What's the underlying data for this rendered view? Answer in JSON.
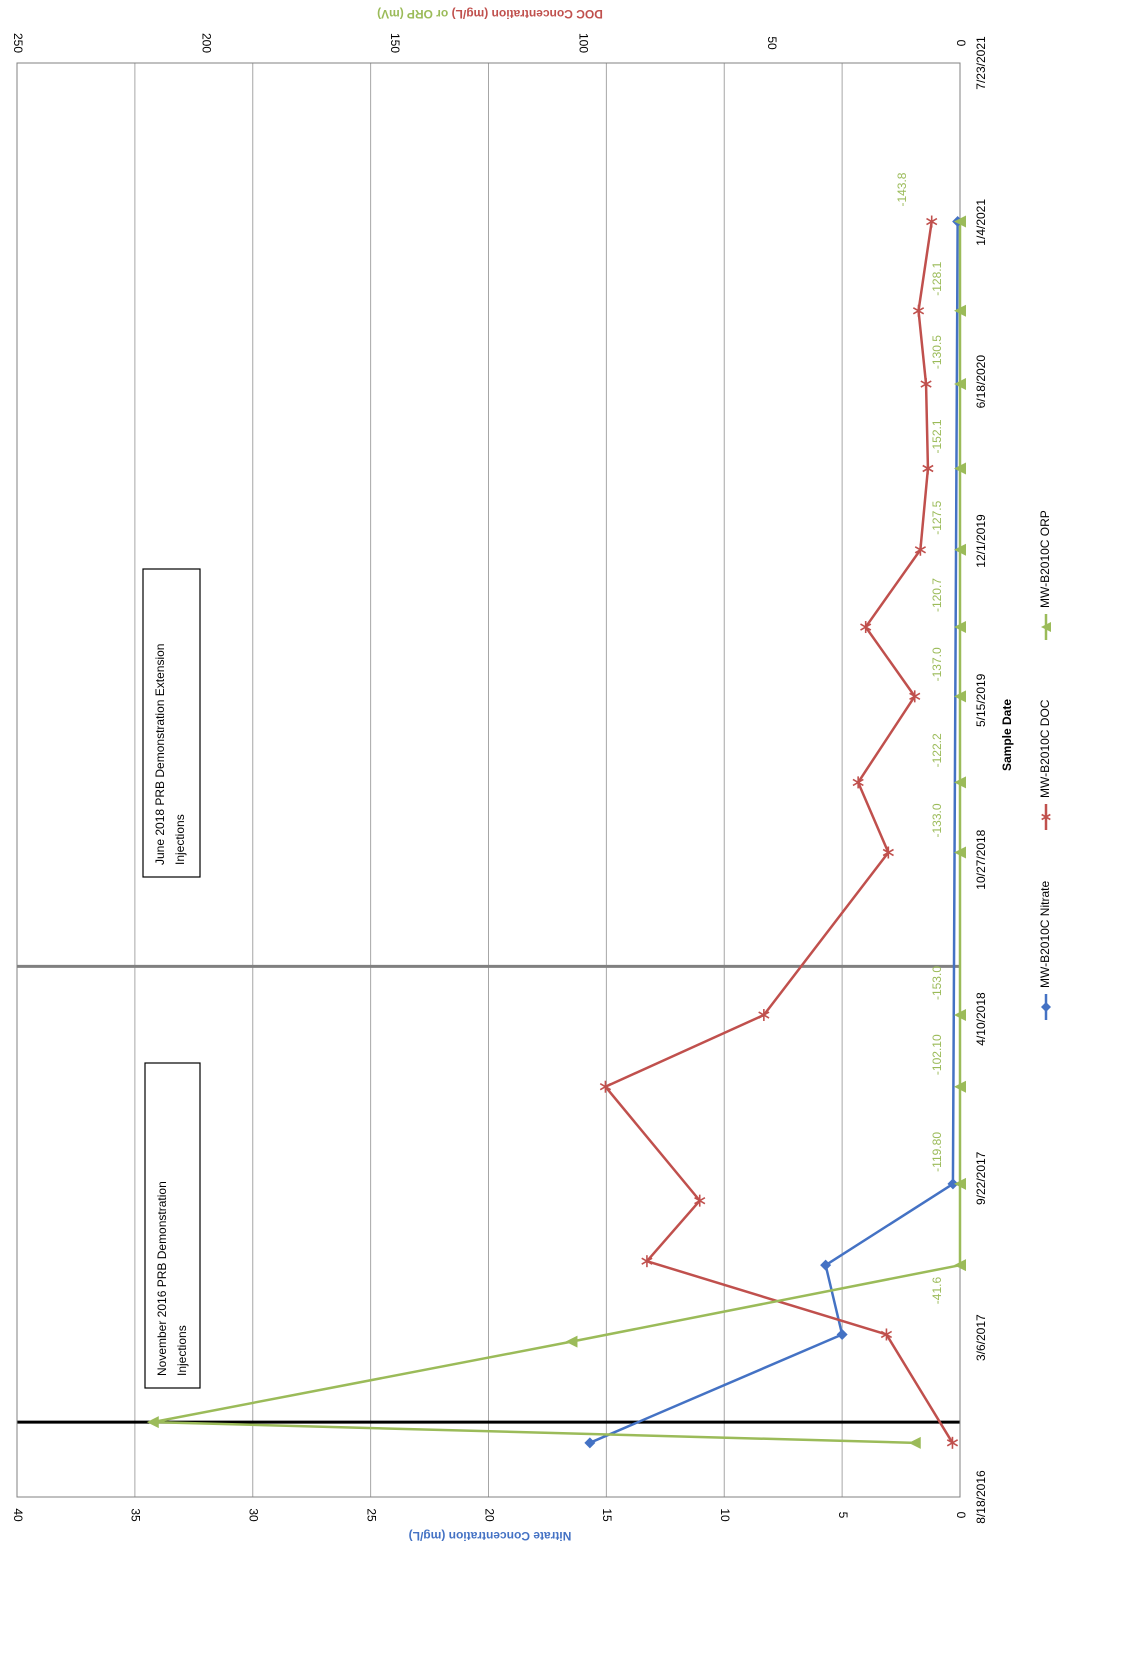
{
  "chart_data": {
    "type": "line",
    "xlabel": "Sample Date",
    "y_left_label": "Nitrate Concentration (mg/L)",
    "y_right_label": "DOC Concentration (mg/L) or ORP (mV)",
    "x_ticks": [
      "8/18/2016",
      "3/6/2017",
      "9/22/2017",
      "4/10/2018",
      "10/27/2018",
      "5/15/2019",
      "12/1/2019",
      "6/18/2020",
      "1/4/2021",
      "7/23/2021"
    ],
    "x_range": [
      "8/18/2016",
      "7/23/2021"
    ],
    "y_left_range": [
      0,
      40
    ],
    "y_left_ticks": [
      0,
      5,
      10,
      15,
      20,
      25,
      30,
      35,
      40
    ],
    "y_right_range": [
      0,
      250
    ],
    "y_right_ticks": [
      0,
      50,
      100,
      150,
      200,
      250
    ],
    "grid": true,
    "legend_position": "bottom",
    "colors": {
      "nitrate": "#4472c4",
      "doc": "#c0504d",
      "orp": "#9bbb59",
      "right_axis_doc": "#c0504d",
      "right_axis_orp": "#9bbb59",
      "left_axis": "#4472c4"
    },
    "series": [
      {
        "name": "MW-B2010C Nitrate",
        "axis": "left",
        "marker": "diamond",
        "x": [
          "10/25/2016",
          "3/10/2017",
          "6/5/2017",
          "9/15/2017",
          "1/5/2021"
        ],
        "y": [
          15.7,
          5.0,
          5.7,
          0.3,
          0.1
        ]
      },
      {
        "name": "MW-B2010C DOC",
        "axis": "right",
        "marker": "star",
        "x": [
          "10/25/2016",
          "3/10/2017",
          "6/10/2017",
          "8/25/2017",
          "1/15/2018",
          "4/15/2018",
          "11/5/2018",
          "2/1/2019",
          "5/20/2019",
          "8/15/2019",
          "11/20/2019",
          "3/1/2020",
          "6/15/2020",
          "9/15/2020",
          "1/5/2021"
        ],
        "y": [
          2.0,
          19.5,
          83.0,
          69.0,
          94.0,
          52.0,
          19.0,
          27.0,
          12.0,
          25.0,
          10.5,
          8.5,
          9.0,
          11.0,
          7.5
        ]
      },
      {
        "name": "MW-B2010C ORP",
        "axis": "right",
        "marker": "triangle",
        "x": [
          "10/25/2016",
          "11/20/2016",
          "3/1/2017",
          "6/5/2017",
          "9/15/2017",
          "1/15/2018",
          "4/15/2018",
          "11/5/2018",
          "2/1/2019",
          "5/20/2019",
          "8/15/2019",
          "11/20/2019",
          "3/1/2020",
          "6/15/2020",
          "9/15/2020",
          "1/5/2021"
        ],
        "y": [
          12,
          214,
          103,
          0,
          0,
          0,
          0,
          0,
          0,
          0,
          0,
          0,
          0,
          0,
          0,
          0
        ]
      }
    ],
    "data_labels": [
      {
        "series": "MW-B2010C ORP",
        "x": "3/25/2017",
        "text": "-41.6"
      },
      {
        "series": "MW-B2010C ORP",
        "x": "9/15/2017",
        "text": "-119.80"
      },
      {
        "series": "MW-B2010C ORP",
        "x": "1/15/2018",
        "text": "-102.10"
      },
      {
        "series": "MW-B2010C ORP",
        "x": "4/15/2018",
        "text": "-153.0"
      },
      {
        "series": "MW-B2010C ORP",
        "x": "11/5/2018",
        "text": "-133.0"
      },
      {
        "series": "MW-B2010C ORP",
        "x": "2/1/2019",
        "text": "-122.2"
      },
      {
        "series": "MW-B2010C ORP",
        "x": "5/20/2019",
        "text": "-137.0"
      },
      {
        "series": "MW-B2010C ORP",
        "x": "8/15/2019",
        "text": "-120.7"
      },
      {
        "series": "MW-B2010C ORP",
        "x": "11/20/2019",
        "text": "-127.5"
      },
      {
        "series": "MW-B2010C ORP",
        "x": "3/1/2020",
        "text": "-152.1"
      },
      {
        "series": "MW-B2010C ORP",
        "x": "6/15/2020",
        "text": "-130.5"
      },
      {
        "series": "MW-B2010C ORP",
        "x": "9/15/2020",
        "text": "-128.1"
      },
      {
        "series": "MW-B2010C ORP",
        "x": "1/5/2021",
        "text": "-143.8"
      }
    ],
    "events": [
      {
        "x": "11/20/2016",
        "style": "black"
      },
      {
        "x": "6/15/2018",
        "style": "gray"
      }
    ],
    "annotations": [
      {
        "lines": [
          "November 2016 PRB Demonstration",
          "Injections"
        ]
      },
      {
        "lines": [
          "June 2018 PRB Demonstration Extension",
          "Injections"
        ]
      }
    ]
  }
}
